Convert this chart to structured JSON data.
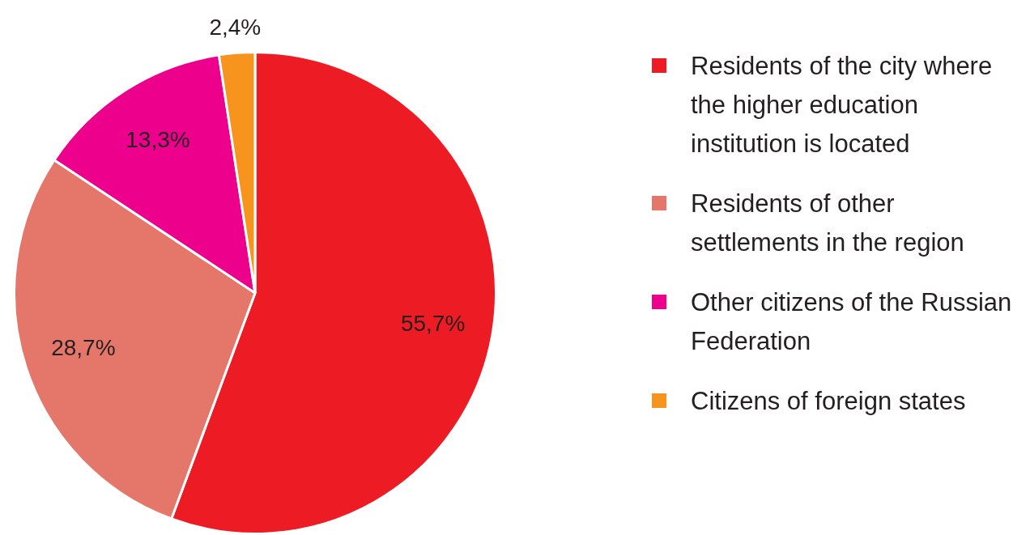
{
  "chart_data": {
    "type": "pie",
    "categories": [
      "Residents of the city where the higher education institution is located",
      "Residents of other settlements in the region",
      "Other citizens of the Russian Federation",
      "Citizens of foreign states"
    ],
    "values": [
      55.7,
      28.7,
      13.3,
      2.4
    ],
    "value_labels": [
      "55,7%",
      "28,7%",
      "13,3%",
      "2,4%"
    ],
    "colors": [
      "#ed1c24",
      "#e5776a",
      "#ec008c",
      "#f7941d"
    ],
    "legend": "right"
  }
}
